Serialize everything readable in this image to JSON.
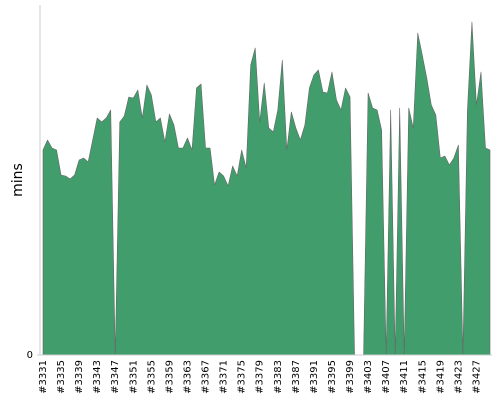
{
  "chart_data": {
    "type": "area",
    "y_label": "mins",
    "color": "#429d6d",
    "categories": [
      "#3331",
      null,
      null,
      null,
      "#3335",
      null,
      null,
      null,
      "#3339",
      null,
      null,
      null,
      "#3343",
      null,
      null,
      null,
      "#3347",
      null,
      null,
      null,
      "#3351",
      null,
      null,
      null,
      "#3355",
      null,
      null,
      null,
      "#3359",
      null,
      null,
      null,
      "#3363",
      null,
      null,
      null,
      "#3367",
      null,
      null,
      null,
      "#3371",
      null,
      null,
      null,
      "#3375",
      null,
      null,
      null,
      "#3379",
      null,
      null,
      null,
      "#3383",
      null,
      null,
      null,
      "#3387",
      null,
      null,
      null,
      "#3391",
      null,
      null,
      null,
      "#3395",
      null,
      null,
      null,
      "#3399",
      null,
      null,
      null,
      "#3403",
      null,
      null,
      null,
      "#3407",
      null,
      null,
      null,
      "#3411",
      null,
      null,
      null,
      "#3415",
      null,
      null,
      null,
      "#3419",
      null,
      null,
      null,
      "#3423",
      null,
      null,
      null,
      "#3427",
      null,
      null,
      null
    ],
    "values": [
      41,
      43,
      41.4,
      41,
      36,
      35.8,
      35.2,
      36,
      39,
      39.4,
      38.6,
      43,
      47.4,
      46.6,
      47.4,
      49,
      0,
      46.6,
      47.8,
      51.6,
      51.4,
      53,
      47.4,
      54,
      52,
      46.6,
      47.4,
      42.6,
      48.2,
      46,
      41.4,
      41.4,
      43.4,
      41,
      53.4,
      54.2,
      41.4,
      41.4,
      34,
      36.6,
      35.8,
      33.8,
      37.8,
      35.8,
      41,
      37.4,
      58,
      61.4,
      46.6,
      54.4,
      45.4,
      44.6,
      49,
      59,
      41,
      48.6,
      45.4,
      43,
      46,
      53.4,
      56,
      57,
      52.6,
      52.4,
      56.6,
      51,
      49,
      53.4,
      51.6,
      0,
      null,
      0,
      52.4,
      49.4,
      49,
      45,
      0,
      49,
      0,
      49.4,
      0,
      49.4,
      45.4,
      64.4,
      60,
      55.4,
      50,
      48,
      39.4,
      39.8,
      38,
      39.4,
      42,
      0,
      49,
      66.6,
      50,
      56.6,
      41.4,
      41
    ],
    "ylim": [
      0,
      70
    ],
    "yticks": [
      0
    ]
  }
}
